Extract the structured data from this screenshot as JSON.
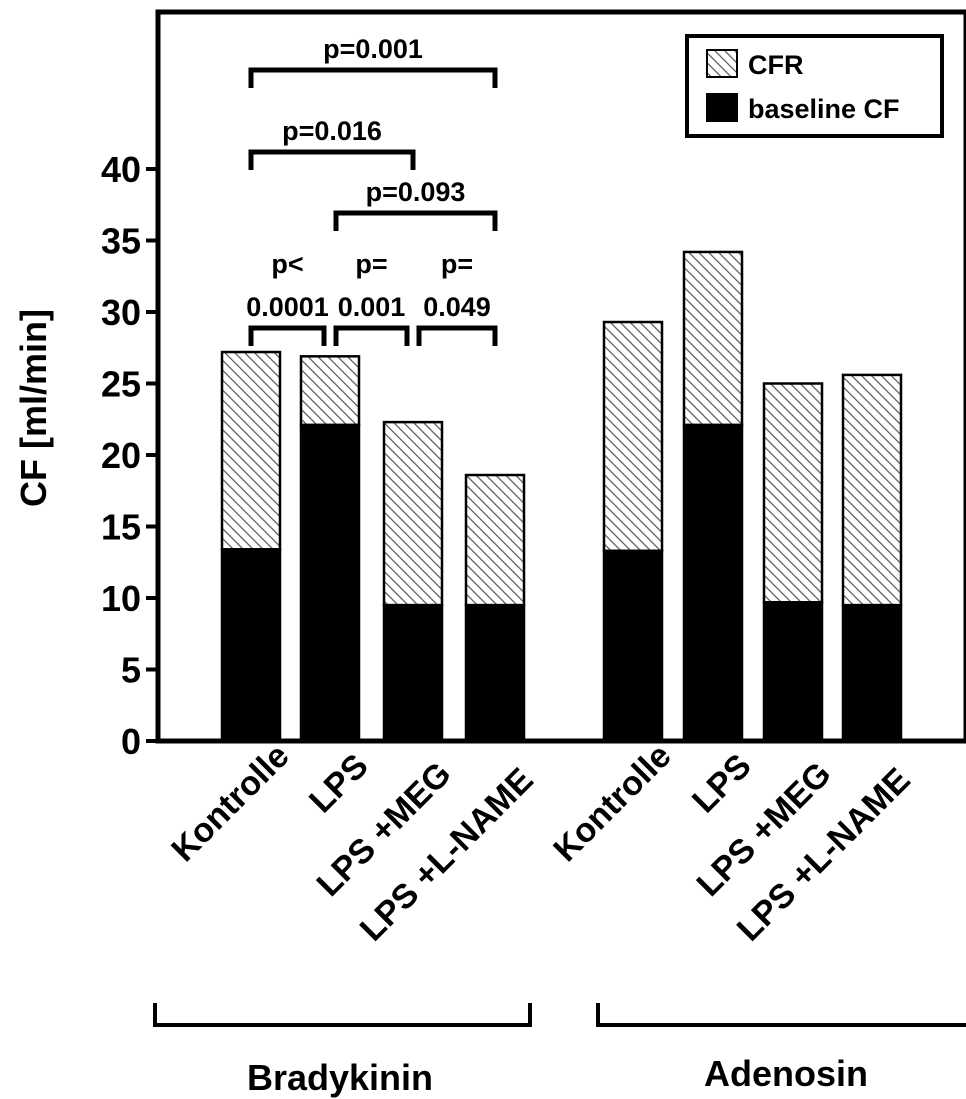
{
  "chart_data": {
    "type": "bar",
    "stacked": true,
    "ylabel": "CF [ml/min]",
    "ylim": [
      0,
      40
    ],
    "yticks": [
      "0",
      "5",
      "10",
      "15",
      "20",
      "25",
      "30",
      "35",
      "40"
    ],
    "categories": [
      "Kontrolle",
      "LPS",
      "LPS +MEG",
      "LPS +L-NAME",
      "Kontrolle",
      "LPS",
      "LPS +MEG",
      "LPS +L-NAME"
    ],
    "groups": [
      {
        "label": "Bradykinin",
        "indices": [
          0,
          1,
          2,
          3
        ]
      },
      {
        "label": "Adenosin",
        "indices": [
          4,
          5,
          6,
          7
        ]
      }
    ],
    "series": [
      {
        "name": "baseline CF",
        "color": "#000000",
        "values": [
          13.4,
          22.1,
          9.5,
          9.5,
          13.3,
          22.1,
          9.7,
          9.5
        ]
      },
      {
        "name": "CFR",
        "pattern": "diagonal-hatch",
        "values": [
          13.8,
          4.8,
          12.8,
          9.1,
          16.0,
          12.1,
          15.3,
          16.1
        ]
      }
    ],
    "totals": [
      27.2,
      26.9,
      22.3,
      18.6,
      29.3,
      34.2,
      25.0,
      25.6
    ],
    "legend": {
      "position": "top-right",
      "entries": [
        "CFR",
        "baseline CF"
      ]
    },
    "annotations": [
      {
        "text_lines": [
          "p<",
          "0.0001"
        ],
        "from": 0,
        "to": 1
      },
      {
        "text_lines": [
          "p=",
          "0.001"
        ],
        "from": 1,
        "to": 2
      },
      {
        "text_lines": [
          "p=",
          "0.049"
        ],
        "from": 2,
        "to": 3
      },
      {
        "text_lines": [
          "p=0.093"
        ],
        "from": 1,
        "to": 3
      },
      {
        "text_lines": [
          "p=0.016"
        ],
        "from": 0,
        "to": 2
      },
      {
        "text_lines": [
          "p=0.001"
        ],
        "from": 0,
        "to": 3
      }
    ]
  }
}
